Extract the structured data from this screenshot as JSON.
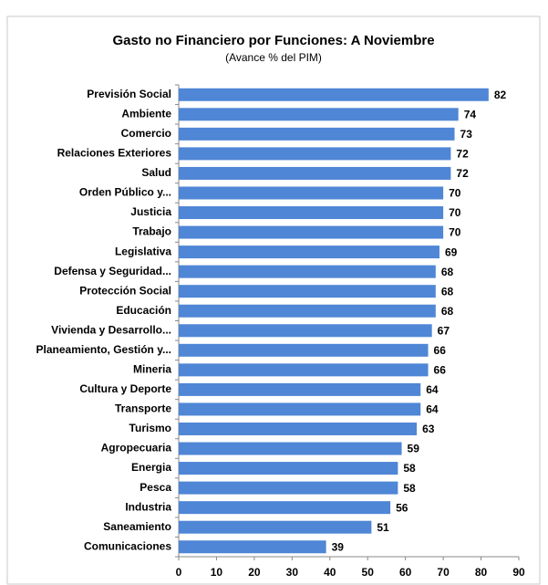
{
  "chart_data": {
    "type": "bar",
    "orientation": "horizontal",
    "title": "Gasto no Financiero por Funciones: A Noviembre",
    "subtitle": "(Avance % del PIM)",
    "categories": [
      "Previsión Social",
      "Ambiente",
      "Comercio",
      "Relaciones Exteriores",
      "Salud",
      "Orden Público y...",
      "Justicia",
      "Trabajo",
      "Legislativa",
      "Defensa y Seguridad...",
      "Protección Social",
      "Educación",
      "Vivienda y Desarrollo...",
      "Planeamiento, Gestión y...",
      "Mineria",
      "Cultura y Deporte",
      "Transporte",
      "Turismo",
      "Agropecuaria",
      "Energia",
      "Pesca",
      "Industria",
      "Saneamiento",
      "Comunicaciones"
    ],
    "values": [
      82,
      74,
      73,
      72,
      72,
      70,
      70,
      70,
      69,
      68,
      68,
      68,
      67,
      66,
      66,
      64,
      64,
      63,
      59,
      58,
      58,
      56,
      51,
      39
    ],
    "color": "#4f86d6",
    "xlim": [
      0,
      90
    ],
    "xticks": [
      0,
      10,
      20,
      30,
      40,
      50,
      60,
      70,
      80,
      90
    ]
  }
}
